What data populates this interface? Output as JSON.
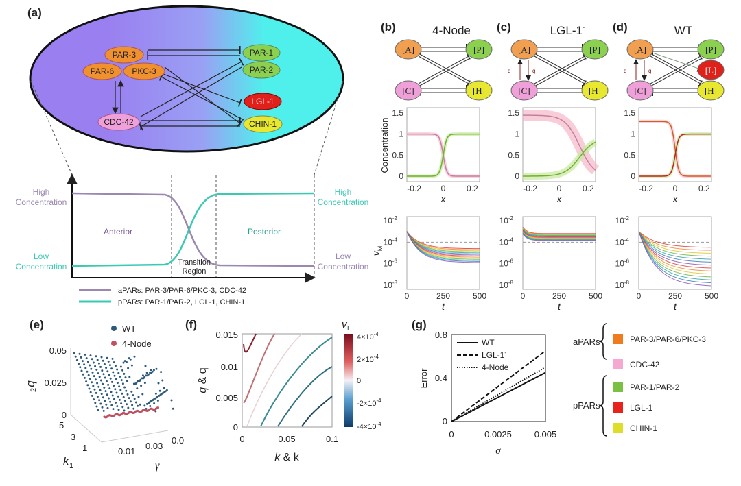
{
  "panels": {
    "a": "(a)",
    "b": "(b)",
    "c": "(c)",
    "d": "(d)",
    "e": "(e)",
    "f": "(f)",
    "g": "(g)"
  },
  "a": {
    "nodes": {
      "par3": "PAR-3",
      "par6": "PAR-6",
      "pkc3": "PKC-3",
      "par1": "PAR-1",
      "par2": "PAR-2",
      "lgl1": "LGL-1",
      "cdc42": "CDC-42",
      "chin1": "CHIN-1"
    },
    "high": [
      "High",
      "Concentration"
    ],
    "low": [
      "Low",
      "Concentration"
    ],
    "anterior": "Anterior",
    "posterior": "Posterior",
    "transition": [
      "Transition",
      "Region"
    ],
    "legend": {
      "apars": "aPARs: PAR-3/PAR-6/PKC-3, CDC-42",
      "ppars": "pPARs: PAR-1/PAR-2,  LGL-1, CHIN-1"
    },
    "colors": {
      "apar": "#9a88b0",
      "ppar": "#3cc9b4",
      "gradient_left": "#9a7ff0",
      "gradient_right": "#4ff0ec"
    }
  },
  "b": {
    "title": "4-Node"
  },
  "c": {
    "title": "LGL-1",
    "title_sup": "-"
  },
  "d": {
    "title": "WT"
  },
  "network": {
    "A": "[A]",
    "P": "[P]",
    "C": "[C]",
    "H": "[H]",
    "L": "[L]",
    "qC2": "q",
    "qA2": "q"
  },
  "conc_axis": {
    "ylabel": "Concentration",
    "xlabel": "x",
    "yticks": [
      "0",
      "0.5",
      "1",
      "1.5"
    ],
    "xticks": [
      "-0.2",
      "0",
      "0.2"
    ]
  },
  "vm_axis": {
    "ylabel": "v",
    "ylabel_sub": "M",
    "xlabel": "t",
    "yticks": [
      "10",
      "10",
      "10",
      "10"
    ],
    "yexp": [
      "-2",
      "-4",
      "-6",
      "-8"
    ],
    "xticks": [
      "0",
      "250",
      "500"
    ]
  },
  "e": {
    "legend": [
      "WT",
      "4-Node"
    ],
    "colors": [
      "#2e5a7a",
      "#c05060"
    ],
    "zlabel": "q",
    "zlabel_sub": "2",
    "zticks": [
      "0.05",
      "0.025",
      "0"
    ],
    "k_ticks": [
      "5",
      "3",
      "1"
    ],
    "k_label": "k",
    "k_sub": "1",
    "g_ticks": [
      "0.01",
      "0.03",
      "0.0"
    ],
    "g_label": "γ"
  },
  "f": {
    "ylabel": "q",
    "ylabel_rest": " & q",
    "xlabel": "k",
    "xlabel_rest": " & k",
    "yticks": [
      "0.015",
      "0.01",
      "0.005",
      "0"
    ],
    "xticks": [
      "0",
      "0.05",
      "0.1"
    ],
    "cbar_label": "v",
    "cbar_sub": "I",
    "cbar_ticks": [
      "4×10",
      "2×10",
      "0",
      "-2×10",
      "-4×10"
    ],
    "cbar_exp": [
      "-4",
      "-4",
      "",
      "-4",
      "-4"
    ]
  },
  "g": {
    "ylabel": "Error",
    "xlabel": "σ",
    "yticks": [
      "0.8",
      "0.4",
      "0"
    ],
    "xticks": [
      "0",
      "0.0025",
      "0.005"
    ],
    "legend": [
      "WT",
      "LGL-1",
      "4-Node"
    ],
    "legend_sup": "-"
  },
  "chart_data": {
    "type": "line",
    "title": "",
    "xlabel": "σ",
    "ylabel": "Error",
    "xlim": [
      0,
      0.005
    ],
    "ylim": [
      0,
      0.8
    ],
    "series": [
      {
        "name": "WT",
        "x": [
          0,
          0.005
        ],
        "y": [
          0,
          0.45
        ]
      },
      {
        "name": "LGL-1-",
        "x": [
          0,
          0.005
        ],
        "y": [
          0,
          0.65
        ]
      },
      {
        "name": "4-Node",
        "x": [
          0,
          0.005
        ],
        "y": [
          0,
          0.5
        ]
      }
    ]
  },
  "key": {
    "apars": "aPARs",
    "ppars": "pPARs",
    "items": [
      {
        "label": "PAR-3/PAR-6/PKC-3",
        "color": "#f07a1e"
      },
      {
        "label": "CDC-42",
        "color": "#f5a8d0"
      },
      {
        "label": "PAR-1/PAR-2",
        "color": "#7ac143"
      },
      {
        "label": "LGL-1",
        "color": "#e8231c"
      },
      {
        "label": "CHIN-1",
        "color": "#dede2a"
      }
    ]
  }
}
